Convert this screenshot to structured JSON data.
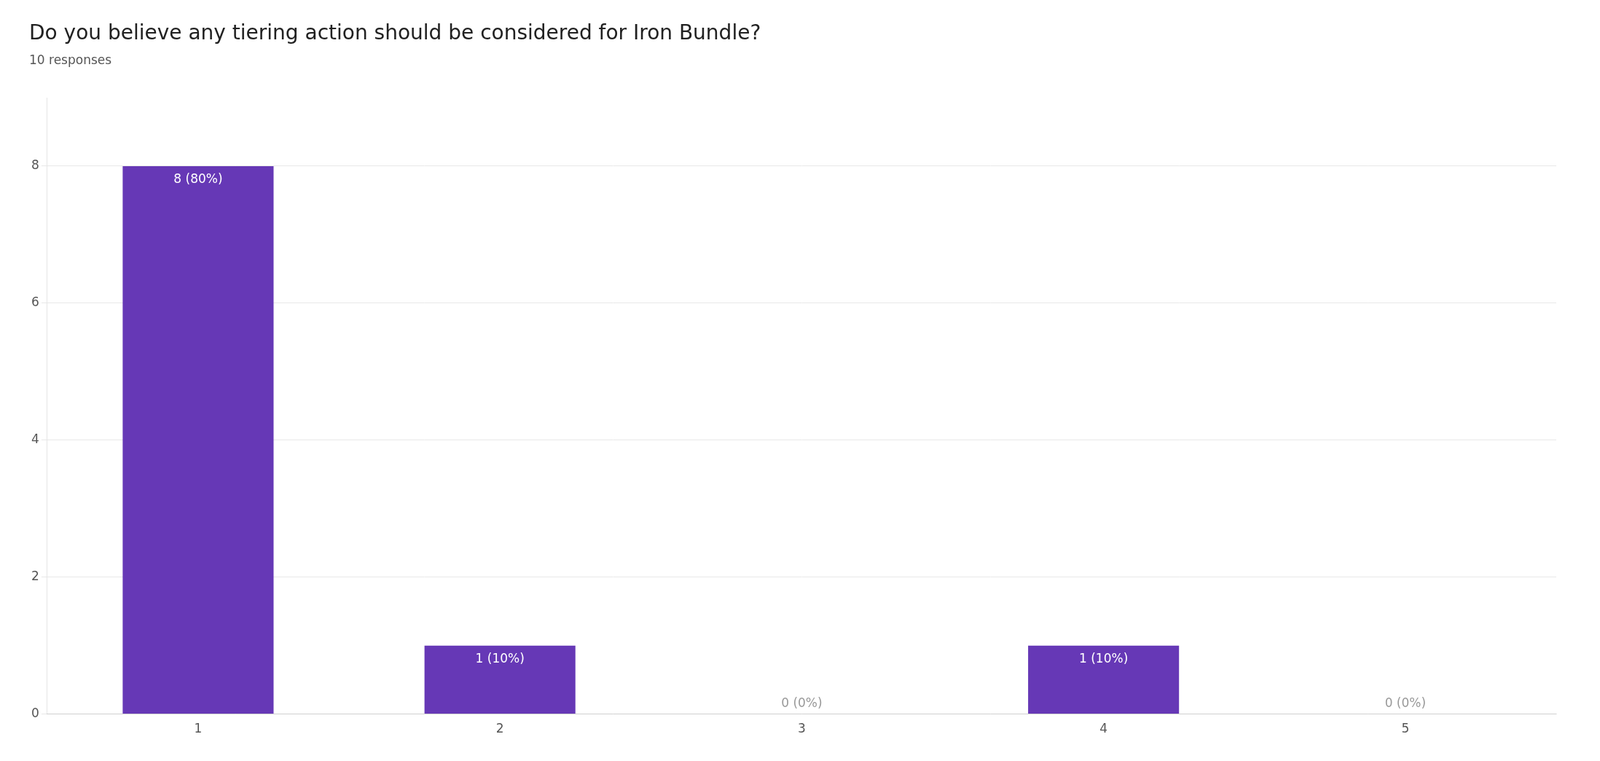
{
  "chart_data": {
    "type": "bar",
    "title": "Do you believe any tiering action should be considered for Iron Bundle?",
    "subtitle": "10 responses",
    "categories": [
      "1",
      "2",
      "3",
      "4",
      "5"
    ],
    "values": [
      8,
      1,
      0,
      1,
      0
    ],
    "value_labels": [
      "8 (80%)",
      "1 (10%)",
      "0 (0%)",
      "1 (10%)",
      "0 (0%)"
    ],
    "data_labels": true,
    "color": "#6638b6",
    "ylim": [
      0,
      9
    ],
    "yticks": [
      0,
      2,
      4,
      6,
      8
    ],
    "grid": true
  }
}
